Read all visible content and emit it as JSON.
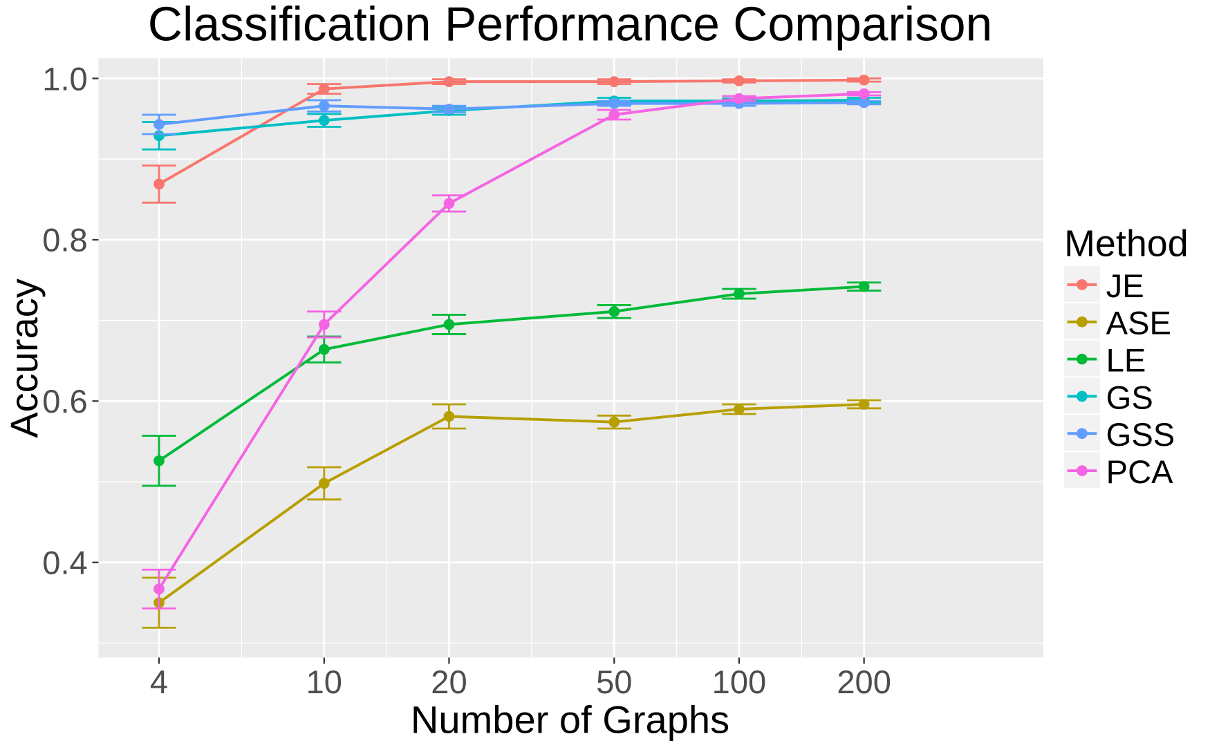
{
  "chart_data": {
    "type": "line",
    "title": "Classification Performance Comparison",
    "xlabel": "Number of Graphs",
    "ylabel": "Accuracy",
    "x": [
      4,
      10,
      20,
      50,
      100,
      200
    ],
    "x_scale": "log",
    "x_tick_labels": [
      "4",
      "10",
      "20",
      "50",
      "100",
      "200"
    ],
    "y_ticks": [
      0.4,
      0.6,
      0.8,
      1.0
    ],
    "y_tick_labels": [
      "0.4",
      "0.6",
      "0.8",
      "1.0"
    ],
    "ylim": [
      0.282,
      1.025
    ],
    "grid": true,
    "legend": {
      "title": "Method",
      "placement": "right"
    },
    "series": [
      {
        "name": "JE",
        "color": "#F8766D",
        "values": [
          0.869,
          0.987,
          0.996,
          0.996,
          0.997,
          0.998
        ],
        "error": [
          0.023,
          0.006,
          0.003,
          0.003,
          0.002,
          0.002
        ]
      },
      {
        "name": "ASE",
        "color": "#B79F00",
        "values": [
          0.35,
          0.498,
          0.581,
          0.574,
          0.59,
          0.596
        ],
        "error": [
          0.031,
          0.02,
          0.015,
          0.008,
          0.006,
          0.005
        ]
      },
      {
        "name": "LE",
        "color": "#00BA38",
        "values": [
          0.526,
          0.664,
          0.695,
          0.711,
          0.733,
          0.742
        ],
        "error": [
          0.031,
          0.016,
          0.012,
          0.008,
          0.006,
          0.005
        ]
      },
      {
        "name": "GS",
        "color": "#00BFC4",
        "values": [
          0.929,
          0.948,
          0.96,
          0.972,
          0.972,
          0.973
        ],
        "error": [
          0.017,
          0.008,
          0.005,
          0.004,
          0.003,
          0.003
        ]
      },
      {
        "name": "GSS",
        "color": "#619CFF",
        "values": [
          0.943,
          0.966,
          0.962,
          0.969,
          0.969,
          0.97
        ],
        "error": [
          0.012,
          0.007,
          0.004,
          0.003,
          0.003,
          0.002
        ]
      },
      {
        "name": "PCA",
        "color": "#F564E3",
        "values": [
          0.367,
          0.695,
          0.845,
          0.955,
          0.975,
          0.981
        ],
        "error": [
          0.024,
          0.016,
          0.01,
          0.006,
          0.003,
          0.002
        ]
      }
    ]
  }
}
